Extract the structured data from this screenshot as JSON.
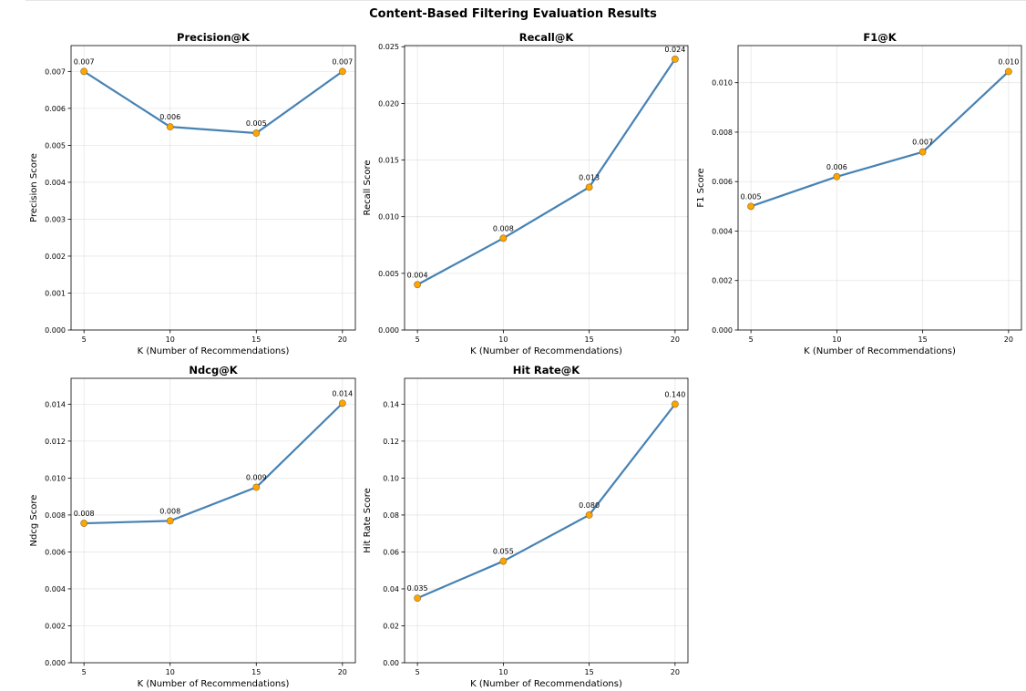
{
  "figure": {
    "suptitle": "Content-Based Filtering Evaluation Results",
    "line_color": "#4682b4",
    "marker_color": "#ffa500"
  },
  "chart_data": [
    {
      "type": "line",
      "title": "Precision@K",
      "xlabel": "K (Number of Recommendations)",
      "ylabel": "Precision Score",
      "x": [
        5,
        10,
        15,
        20
      ],
      "values": [
        0.007,
        0.0055,
        0.00533,
        0.007
      ],
      "point_labels": [
        "0.007",
        "0.006",
        "0.005",
        "0.007"
      ],
      "ylim": [
        0,
        0.0077
      ],
      "yticks": [
        0,
        0.001,
        0.002,
        0.003,
        0.004,
        0.005,
        0.006,
        0.007
      ],
      "ytick_labels": [
        "0.000",
        "0.001",
        "0.002",
        "0.003",
        "0.004",
        "0.005",
        "0.006",
        "0.007"
      ],
      "xticks": [
        5,
        10,
        15,
        20
      ],
      "xtick_labels": [
        "5",
        "10",
        "15",
        "20"
      ],
      "grid": true
    },
    {
      "type": "line",
      "title": "Recall@K",
      "xlabel": "K (Number of Recommendations)",
      "ylabel": "Recall Score",
      "x": [
        5,
        10,
        15,
        20
      ],
      "values": [
        0.004,
        0.0081,
        0.0126,
        0.0239
      ],
      "point_labels": [
        "0.004",
        "0.008",
        "0.013",
        "0.024"
      ],
      "ylim": [
        0,
        0.0251
      ],
      "yticks": [
        0,
        0.005,
        0.01,
        0.015,
        0.02,
        0.025
      ],
      "ytick_labels": [
        "0.000",
        "0.005",
        "0.010",
        "0.015",
        "0.020",
        "0.025"
      ],
      "xticks": [
        5,
        10,
        15,
        20
      ],
      "xtick_labels": [
        "5",
        "10",
        "15",
        "20"
      ],
      "grid": true
    },
    {
      "type": "line",
      "title": "F1@K",
      "xlabel": "K (Number of Recommendations)",
      "ylabel": "F1 Score",
      "x": [
        5,
        10,
        15,
        20
      ],
      "values": [
        0.005,
        0.0062,
        0.0072,
        0.01045
      ],
      "point_labels": [
        "0.005",
        "0.006",
        "0.007",
        "0.010"
      ],
      "ylim": [
        0,
        0.0115
      ],
      "yticks": [
        0,
        0.002,
        0.004,
        0.006,
        0.008,
        0.01
      ],
      "ytick_labels": [
        "0.000",
        "0.002",
        "0.004",
        "0.006",
        "0.008",
        "0.010"
      ],
      "xticks": [
        5,
        10,
        15,
        20
      ],
      "xtick_labels": [
        "5",
        "10",
        "15",
        "20"
      ],
      "grid": true
    },
    {
      "type": "line",
      "title": "Ndcg@K",
      "xlabel": "K (Number of Recommendations)",
      "ylabel": "Ndcg Score",
      "x": [
        5,
        10,
        15,
        20
      ],
      "values": [
        0.00755,
        0.00768,
        0.0095,
        0.01405
      ],
      "point_labels": [
        "0.008",
        "0.008",
        "0.009",
        "0.014"
      ],
      "ylim": [
        0,
        0.0154
      ],
      "yticks": [
        0,
        0.002,
        0.004,
        0.006,
        0.008,
        0.01,
        0.012,
        0.014
      ],
      "ytick_labels": [
        "0.000",
        "0.002",
        "0.004",
        "0.006",
        "0.008",
        "0.010",
        "0.012",
        "0.014"
      ],
      "xticks": [
        5,
        10,
        15,
        20
      ],
      "xtick_labels": [
        "5",
        "10",
        "15",
        "20"
      ],
      "grid": true
    },
    {
      "type": "line",
      "title": "Hit Rate@K",
      "xlabel": "K (Number of Recommendations)",
      "ylabel": "Hit Rate Score",
      "x": [
        5,
        10,
        15,
        20
      ],
      "values": [
        0.035,
        0.055,
        0.08,
        0.14
      ],
      "point_labels": [
        "0.035",
        "0.055",
        "0.080",
        "0.140"
      ],
      "ylim": [
        0,
        0.154
      ],
      "yticks": [
        0,
        0.02,
        0.04,
        0.06,
        0.08,
        0.1,
        0.12,
        0.14
      ],
      "ytick_labels": [
        "0.00",
        "0.02",
        "0.04",
        "0.06",
        "0.08",
        "0.10",
        "0.12",
        "0.14"
      ],
      "xticks": [
        5,
        10,
        15,
        20
      ],
      "xtick_labels": [
        "5",
        "10",
        "15",
        "20"
      ],
      "grid": true
    }
  ]
}
